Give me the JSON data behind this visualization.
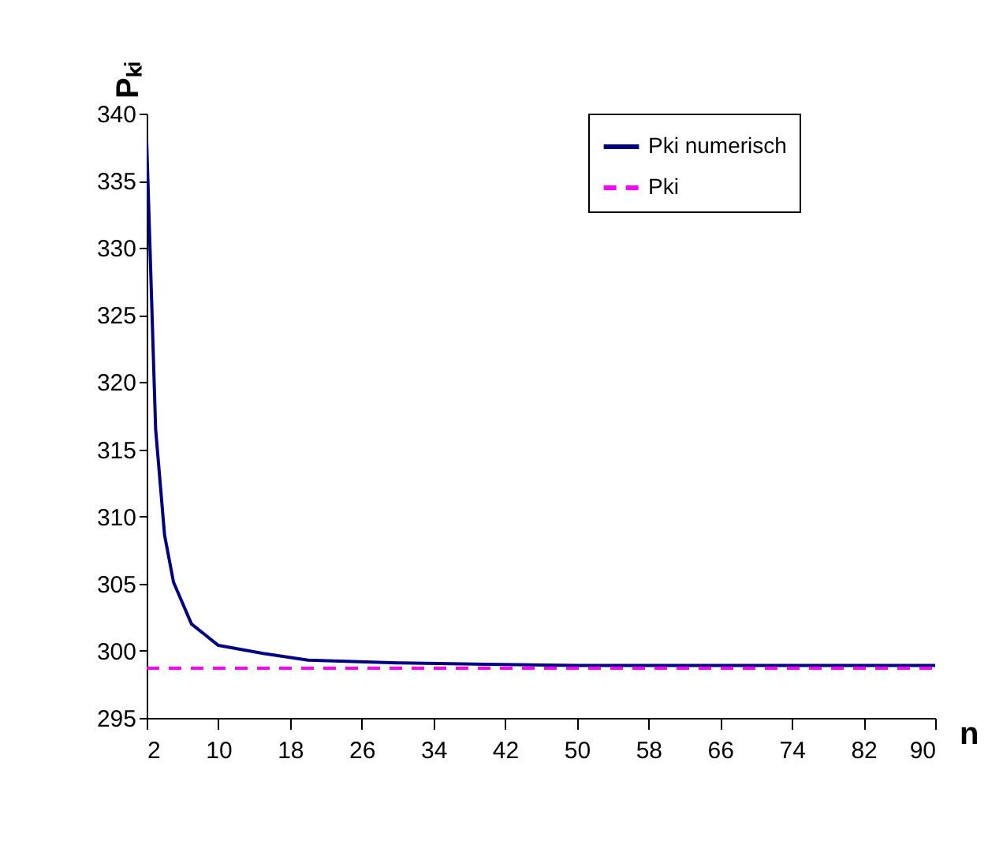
{
  "chart_data": {
    "type": "line",
    "xlabel": "n",
    "ylabel": "Pₖᵢ",
    "xlim": [
      2,
      90
    ],
    "xticks": [
      2,
      10,
      18,
      26,
      34,
      42,
      50,
      58,
      66,
      74,
      82,
      90
    ],
    "ylim": [
      295,
      340
    ],
    "yticks": [
      295,
      300,
      305,
      310,
      315,
      320,
      325,
      330,
      335,
      340
    ],
    "grid": false,
    "legend": "top right",
    "marker": "none",
    "series": [
      {
        "name": "Pki numerisch",
        "color": "#000080",
        "line_style": "solid",
        "x": [
          2,
          3,
          4,
          5,
          7,
          10,
          15,
          20,
          30,
          40,
          50,
          60,
          70,
          80,
          90
        ],
        "values": [
          338,
          316.5,
          308.6,
          305.1,
          302.0,
          300.4,
          299.8,
          299.3,
          299.1,
          299.0,
          298.9,
          298.9,
          298.9,
          298.9,
          298.9
        ]
      },
      {
        "name": "Pki",
        "color": "#ff00ff",
        "line_style": "dashed",
        "x": [
          2,
          90
        ],
        "values": [
          298.7,
          298.7
        ]
      }
    ]
  }
}
